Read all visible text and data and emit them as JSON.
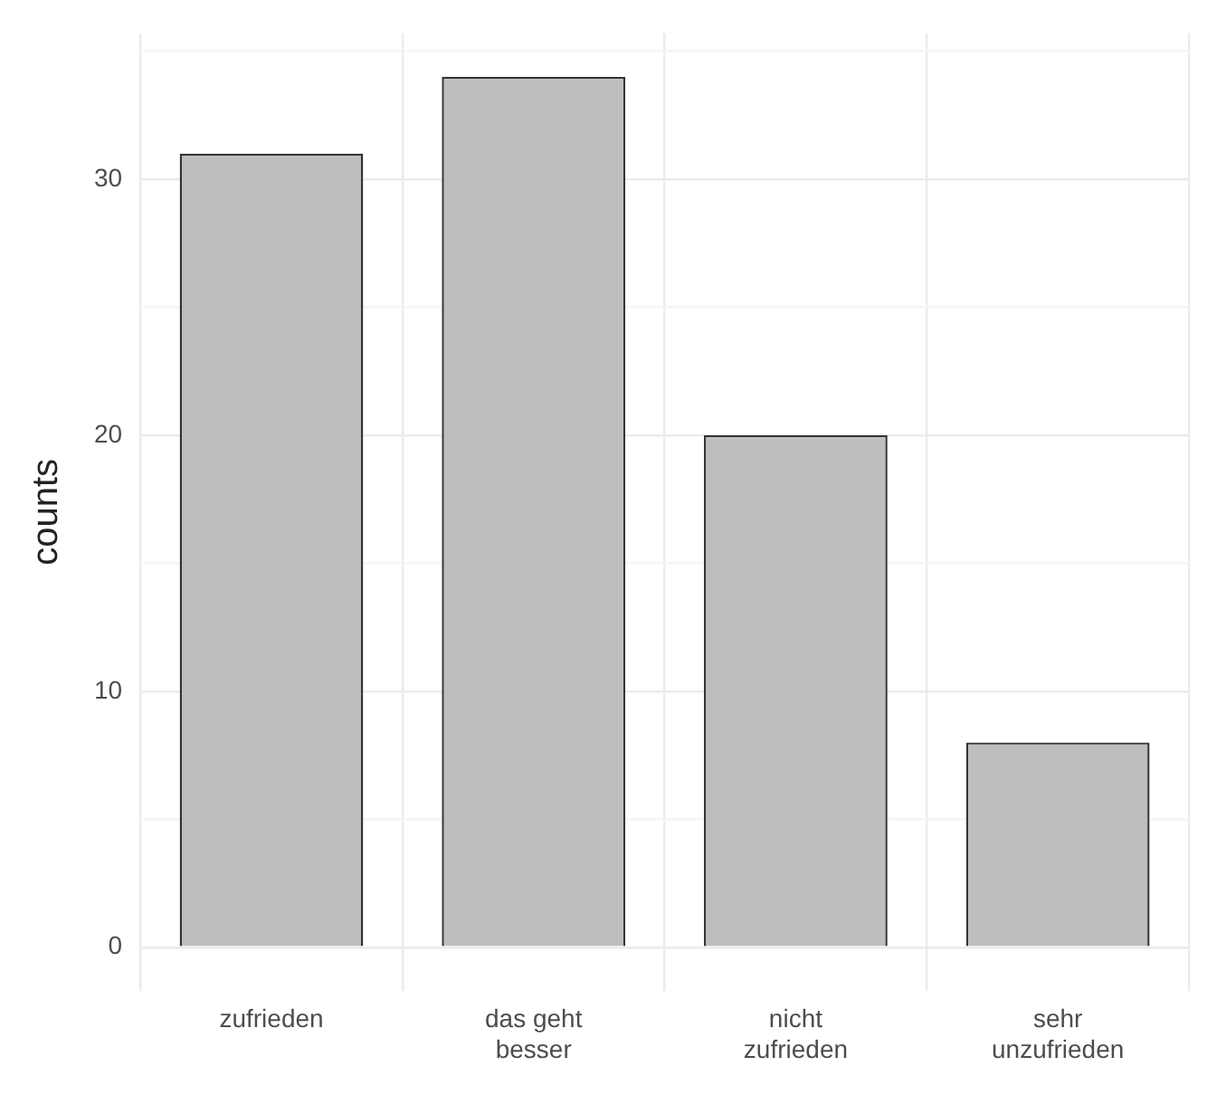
{
  "chart_data": {
    "type": "bar",
    "ylabel": "counts",
    "categories": [
      "zufrieden",
      "das geht besser",
      "nicht zufrieden",
      "sehr unzufrieden"
    ],
    "values": [
      31,
      34,
      20,
      8
    ],
    "color": "#bebebe",
    "ylim": [
      -1.7,
      35.7
    ],
    "yticks": [
      0,
      {
        "value": 5,
        "label": null
      },
      10,
      {
        "value": 15,
        "label": null
      },
      20,
      {
        "value": 25,
        "label": null
      },
      30,
      {
        "value": 35,
        "label": null
      }
    ],
    "grid": true,
    "legend": false
  }
}
